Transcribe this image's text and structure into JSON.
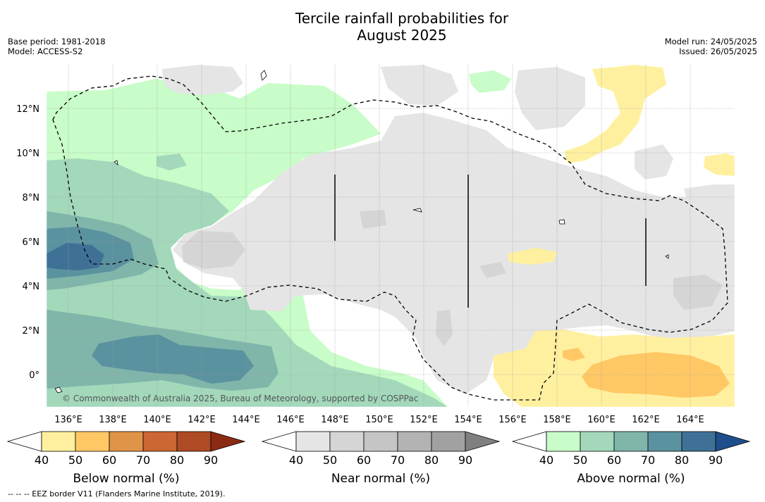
{
  "header": {
    "title_line1": "Tercile rainfall probabilities for",
    "title_line2": "August 2025",
    "base_period": "Base period: 1981-2018",
    "model": "Model: ACCESS-S2",
    "model_run": "Model run: 24/05/2025",
    "issued": "Issued: 26/05/2025"
  },
  "map": {
    "lon_ticks": [
      "136°E",
      "138°E",
      "140°E",
      "142°E",
      "144°E",
      "146°E",
      "148°E",
      "150°E",
      "152°E",
      "154°E",
      "156°E",
      "158°E",
      "160°E",
      "162°E",
      "164°E"
    ],
    "lat_ticks": [
      "12°N",
      "10°N",
      "8°N",
      "6°N",
      "4°N",
      "2°N",
      "0°"
    ],
    "copyright": "© Commonwealth of Australia 2025, Bureau of Meteorology, supported by COSPPac",
    "colors": {
      "white": "#ffffff",
      "above_40": "#c8fcc8",
      "above_50": "#a3d8bb",
      "above_60": "#80b5aa",
      "above_70": "#5a929f",
      "above_80": "#3f7197",
      "near_40": "#e5e5e5",
      "near_50": "#d5d5d5",
      "below_40": "#fff0a0",
      "below_50": "#ffc864"
    }
  },
  "colorbars": [
    {
      "label": "Below normal (%)",
      "ticks": [
        "40",
        "50",
        "60",
        "70",
        "80",
        "90"
      ],
      "colors": [
        "#ffffff",
        "#fff0a0",
        "#ffc864",
        "#e09448",
        "#cc6634",
        "#ae4a24",
        "#8c2a14"
      ]
    },
    {
      "label": "Near normal (%)",
      "ticks": [
        "40",
        "50",
        "60",
        "70",
        "80",
        "90"
      ],
      "colors": [
        "#ffffff",
        "#e5e5e5",
        "#d5d5d5",
        "#c5c5c5",
        "#b3b3b3",
        "#a1a1a1",
        "#808080"
      ]
    },
    {
      "label": "Above normal (%)",
      "ticks": [
        "40",
        "50",
        "60",
        "70",
        "80",
        "90"
      ],
      "colors": [
        "#ffffff",
        "#c8fcc8",
        "#a3d8bb",
        "#80b5aa",
        "#5a929f",
        "#3f7197",
        "#1e4f8c"
      ]
    }
  ],
  "footnote": "--  --  -- EEZ border V11 (Flanders Marine Institute, 2019)."
}
